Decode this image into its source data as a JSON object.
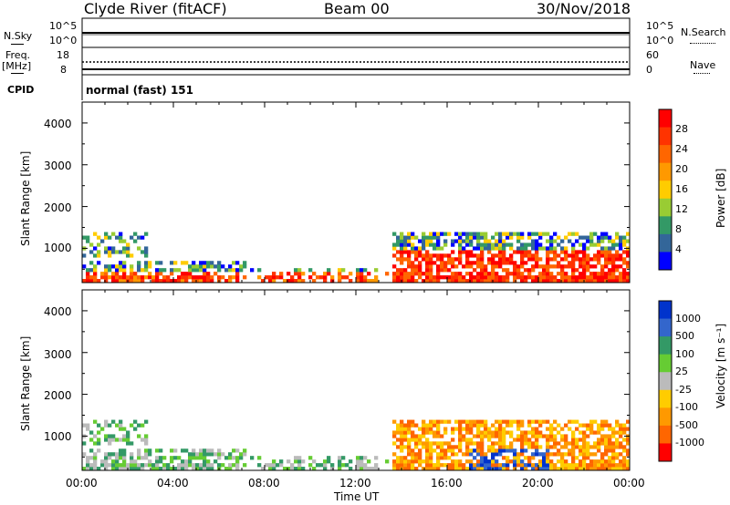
{
  "header": {
    "station": "Clyde River (fitACF)",
    "beam": "Beam 00",
    "date": "30/Nov/2018"
  },
  "top_panels": {
    "nsky_label": "N.Sky",
    "nsearch_label": "N.Search",
    "nsky_ticks": [
      "10^5",
      "10^0"
    ],
    "nsearch_ticks": [
      "10^5",
      "10^0"
    ],
    "freq_label": "Freq.",
    "freq_unit": "[MHz]",
    "freq_ticks": [
      "18",
      "8"
    ],
    "nave_label": "Nave",
    "nave_ticks": [
      "60",
      "0"
    ],
    "cpid_label": "CPID",
    "cpid_value": "normal (fast) 151"
  },
  "chart_data": [
    {
      "type": "heatmap",
      "name": "power-panel",
      "ylabel": "Slant Range [km]",
      "y_ticks": [
        "4000",
        "3000",
        "2000",
        "1000"
      ],
      "ylim": [
        180,
        4500
      ],
      "colorbar_label": "Power [dB]",
      "colorbar_ticks": [
        "28",
        "24",
        "20",
        "16",
        "12",
        "8",
        "4"
      ],
      "colorbar_colors": [
        "#ff0000",
        "#ff3300",
        "#ff6600",
        "#ff9900",
        "#ffcc00",
        "#99cc33",
        "#339966",
        "#336699",
        "#0000ff"
      ]
    },
    {
      "type": "heatmap",
      "name": "velocity-panel",
      "ylabel": "Slant Range [km]",
      "y_ticks": [
        "4000",
        "3000",
        "2000",
        "1000"
      ],
      "ylim": [
        180,
        4500
      ],
      "colorbar_label": "Velocity [m s⁻¹]",
      "colorbar_ticks": [
        "1000",
        "500",
        "100",
        "25",
        "-25",
        "-100",
        "-500",
        "-1000"
      ],
      "colorbar_colors": [
        "#0033cc",
        "#3366cc",
        "#339966",
        "#66cc33",
        "#bbbbbb",
        "#ffcc00",
        "#ff9900",
        "#ff6600",
        "#ff0000"
      ]
    }
  ],
  "x_axis": {
    "ticks": [
      "00:00",
      "04:00",
      "08:00",
      "12:00",
      "16:00",
      "20:00",
      "00:00"
    ],
    "xlabel": "Time UT"
  }
}
